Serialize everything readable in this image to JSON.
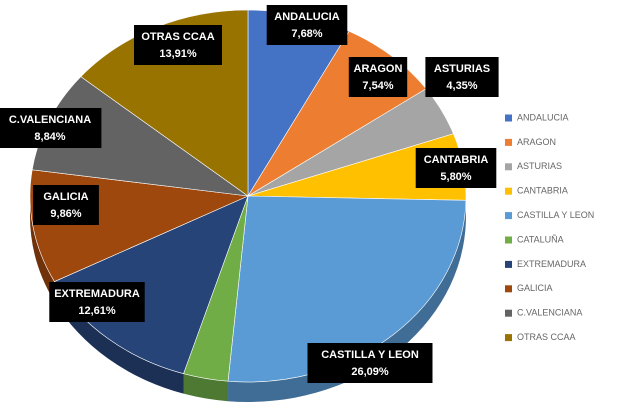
{
  "chart_data": {
    "type": "pie",
    "categories": [
      "ANDALUCIA",
      "ARAGON",
      "ASTURIAS",
      "CANTABRIA",
      "CASTILLA Y LEON",
      "CATALUÑA",
      "EXTREMADURA",
      "GALICIA",
      "C.VALENCIANA",
      "OTRAS CCAA"
    ],
    "values": [
      7.68,
      7.54,
      4.35,
      5.8,
      26.09,
      3.32,
      12.61,
      9.86,
      8.84,
      13.91
    ],
    "value_labels": [
      "7,68%",
      "7,54%",
      "4,35%",
      "5,80%",
      "26,09%",
      null,
      "12,61%",
      "9,86%",
      "8,84%",
      "13,91%"
    ],
    "colors": [
      "#4472c4",
      "#ed7d31",
      "#a5a5a5",
      "#ffc000",
      "#5b9bd5",
      "#70ad47",
      "#264478",
      "#9e480e",
      "#636363",
      "#997300"
    ],
    "legend": "right"
  }
}
